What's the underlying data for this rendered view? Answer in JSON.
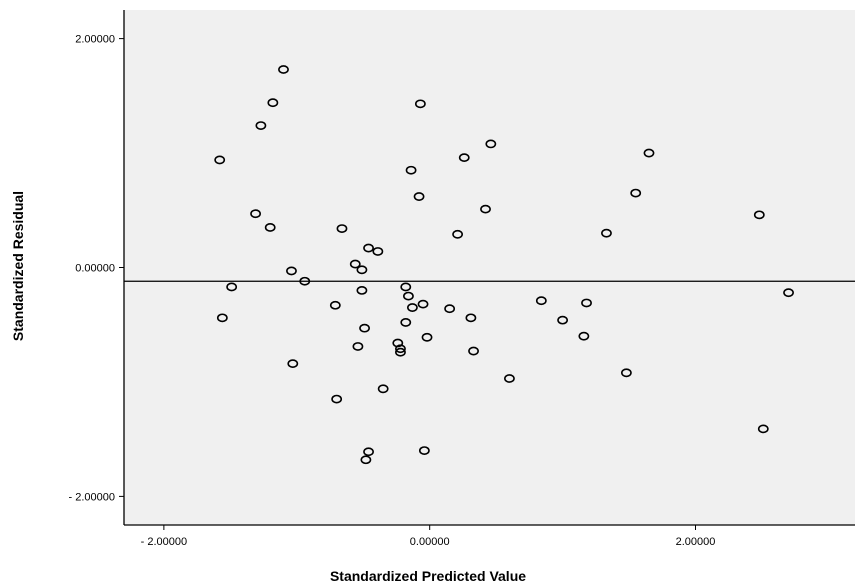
{
  "chart_data": {
    "type": "scatter",
    "title": "",
    "xlabel": "Standardized Predicted Value",
    "ylabel": "Standardized Residual",
    "xlim": [
      -2.3,
      3.2
    ],
    "ylim": [
      -2.25,
      2.25
    ],
    "x_ticks": [
      -2,
      0,
      2
    ],
    "x_tick_labels": [
      "- 2.00000",
      "0.00000",
      "2.00000"
    ],
    "y_ticks": [
      2,
      0,
      -2
    ],
    "y_tick_labels": [
      "2.00000",
      "0.00000",
      "- 2.00000"
    ],
    "reference_line_y": -0.12,
    "grid": false,
    "colors": {
      "background": "#f0f0f0",
      "marker": "#000000"
    },
    "points": [
      {
        "x": -1.1,
        "y": 1.73
      },
      {
        "x": -1.18,
        "y": 1.44
      },
      {
        "x": -1.27,
        "y": 1.24
      },
      {
        "x": -1.58,
        "y": 0.94
      },
      {
        "x": -1.31,
        "y": 0.47
      },
      {
        "x": -1.2,
        "y": 0.35
      },
      {
        "x": -1.04,
        "y": -0.03
      },
      {
        "x": -0.94,
        "y": -0.12
      },
      {
        "x": -1.49,
        "y": -0.17
      },
      {
        "x": -1.56,
        "y": -0.44
      },
      {
        "x": -1.03,
        "y": -0.84
      },
      {
        "x": -0.7,
        "y": -1.15
      },
      {
        "x": -0.66,
        "y": 0.34
      },
      {
        "x": -0.46,
        "y": 0.17
      },
      {
        "x": -0.39,
        "y": 0.14
      },
      {
        "x": -0.56,
        "y": 0.03
      },
      {
        "x": -0.51,
        "y": -0.02
      },
      {
        "x": -0.51,
        "y": -0.2
      },
      {
        "x": -0.71,
        "y": -0.33
      },
      {
        "x": -0.49,
        "y": -0.53
      },
      {
        "x": -0.54,
        "y": -0.69
      },
      {
        "x": -0.24,
        "y": -0.66
      },
      {
        "x": -0.22,
        "y": -0.74
      },
      {
        "x": -0.22,
        "y": -0.71
      },
      {
        "x": -0.35,
        "y": -1.06
      },
      {
        "x": -0.18,
        "y": -0.17
      },
      {
        "x": -0.16,
        "y": -0.25
      },
      {
        "x": -0.13,
        "y": -0.35
      },
      {
        "x": -0.18,
        "y": -0.48
      },
      {
        "x": -0.05,
        "y": -0.32
      },
      {
        "x": -0.02,
        "y": -0.61
      },
      {
        "x": -0.07,
        "y": 1.43
      },
      {
        "x": -0.14,
        "y": 0.85
      },
      {
        "x": -0.08,
        "y": 0.62
      },
      {
        "x": 0.26,
        "y": 0.96
      },
      {
        "x": 0.46,
        "y": 1.08
      },
      {
        "x": 0.42,
        "y": 0.51
      },
      {
        "x": 0.21,
        "y": 0.29
      },
      {
        "x": 0.15,
        "y": -0.36
      },
      {
        "x": 0.31,
        "y": -0.44
      },
      {
        "x": 0.33,
        "y": -0.73
      },
      {
        "x": 0.6,
        "y": -0.97
      },
      {
        "x": -0.04,
        "y": -1.6
      },
      {
        "x": -0.46,
        "y": -1.61
      },
      {
        "x": -0.48,
        "y": -1.68
      },
      {
        "x": 0.84,
        "y": -0.29
      },
      {
        "x": 1.0,
        "y": -0.46
      },
      {
        "x": 1.16,
        "y": -0.6
      },
      {
        "x": 1.18,
        "y": -0.31
      },
      {
        "x": 1.48,
        "y": -0.92
      },
      {
        "x": 1.33,
        "y": 0.3
      },
      {
        "x": 1.55,
        "y": 0.65
      },
      {
        "x": 1.65,
        "y": 1.0
      },
      {
        "x": 2.48,
        "y": 0.46
      },
      {
        "x": 2.7,
        "y": -0.22
      },
      {
        "x": 2.51,
        "y": -1.41
      }
    ]
  }
}
